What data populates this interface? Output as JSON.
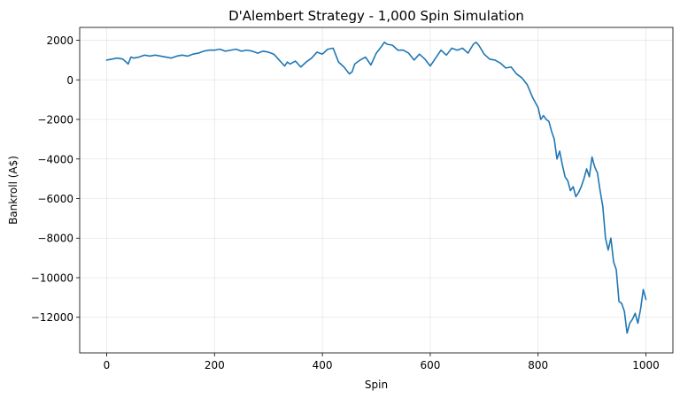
{
  "chart_data": {
    "type": "line",
    "title": "D'Alembert Strategy - 1,000 Spin Simulation",
    "xlabel": "Spin",
    "ylabel": "Bankroll (A$)",
    "xlim": [
      -50,
      1050
    ],
    "ylim": [
      -13800,
      2650
    ],
    "xticks": [
      0,
      200,
      400,
      600,
      800,
      1000
    ],
    "yticks": [
      2000,
      0,
      -2000,
      -4000,
      -6000,
      -8000,
      -10000,
      -12000
    ],
    "xtick_labels": [
      "0",
      "200",
      "400",
      "600",
      "800",
      "1000"
    ],
    "ytick_labels": [
      "2000",
      "0",
      "−2000",
      "−4000",
      "−6000",
      "−8000",
      "−10000",
      "−12000"
    ],
    "grid": true,
    "series": [
      {
        "color": "#1f77b4",
        "x": [
          0,
          10,
          20,
          30,
          40,
          45,
          50,
          60,
          70,
          80,
          90,
          100,
          110,
          120,
          130,
          140,
          150,
          160,
          170,
          180,
          190,
          200,
          210,
          220,
          230,
          240,
          250,
          260,
          270,
          280,
          290,
          300,
          310,
          320,
          330,
          335,
          340,
          350,
          360,
          370,
          380,
          390,
          400,
          410,
          420,
          430,
          440,
          450,
          455,
          460,
          470,
          480,
          490,
          500,
          510,
          515,
          520,
          530,
          540,
          550,
          560,
          570,
          580,
          590,
          600,
          605,
          610,
          620,
          630,
          640,
          650,
          660,
          670,
          680,
          685,
          690,
          700,
          710,
          720,
          730,
          740,
          750,
          760,
          770,
          780,
          790,
          800,
          805,
          810,
          815,
          820,
          825,
          830,
          835,
          840,
          845,
          850,
          855,
          860,
          865,
          870,
          875,
          880,
          885,
          890,
          895,
          900,
          905,
          910,
          915,
          920,
          925,
          930,
          935,
          940,
          945,
          950,
          955,
          960,
          965,
          970,
          975,
          980,
          985,
          990,
          995,
          1000
        ],
        "y": [
          1000,
          1050,
          1100,
          1050,
          800,
          1150,
          1100,
          1150,
          1250,
          1200,
          1250,
          1200,
          1150,
          1100,
          1200,
          1250,
          1200,
          1300,
          1350,
          1450,
          1500,
          1500,
          1550,
          1450,
          1500,
          1550,
          1450,
          1500,
          1450,
          1350,
          1450,
          1400,
          1300,
          1000,
          700,
          900,
          800,
          950,
          650,
          900,
          1100,
          1400,
          1300,
          1550,
          1600,
          900,
          650,
          300,
          400,
          800,
          1000,
          1150,
          750,
          1350,
          1700,
          1900,
          1800,
          1750,
          1500,
          1500,
          1350,
          1000,
          1300,
          1050,
          700,
          900,
          1100,
          1500,
          1250,
          1600,
          1500,
          1600,
          1350,
          1800,
          1900,
          1750,
          1300,
          1050,
          1000,
          850,
          600,
          650,
          300,
          100,
          -250,
          -900,
          -1400,
          -2000,
          -1800,
          -2000,
          -2100,
          -2600,
          -3000,
          -4000,
          -3600,
          -4300,
          -4900,
          -5100,
          -5600,
          -5400,
          -5900,
          -5700,
          -5400,
          -5000,
          -4500,
          -4900,
          -3900,
          -4400,
          -4700,
          -5600,
          -6400,
          -8000,
          -8600,
          -8000,
          -9200,
          -9600,
          -11200,
          -11300,
          -11700,
          -12800,
          -12300,
          -12100,
          -11800,
          -12300,
          -11600,
          -10600,
          -11100
        ]
      }
    ]
  }
}
